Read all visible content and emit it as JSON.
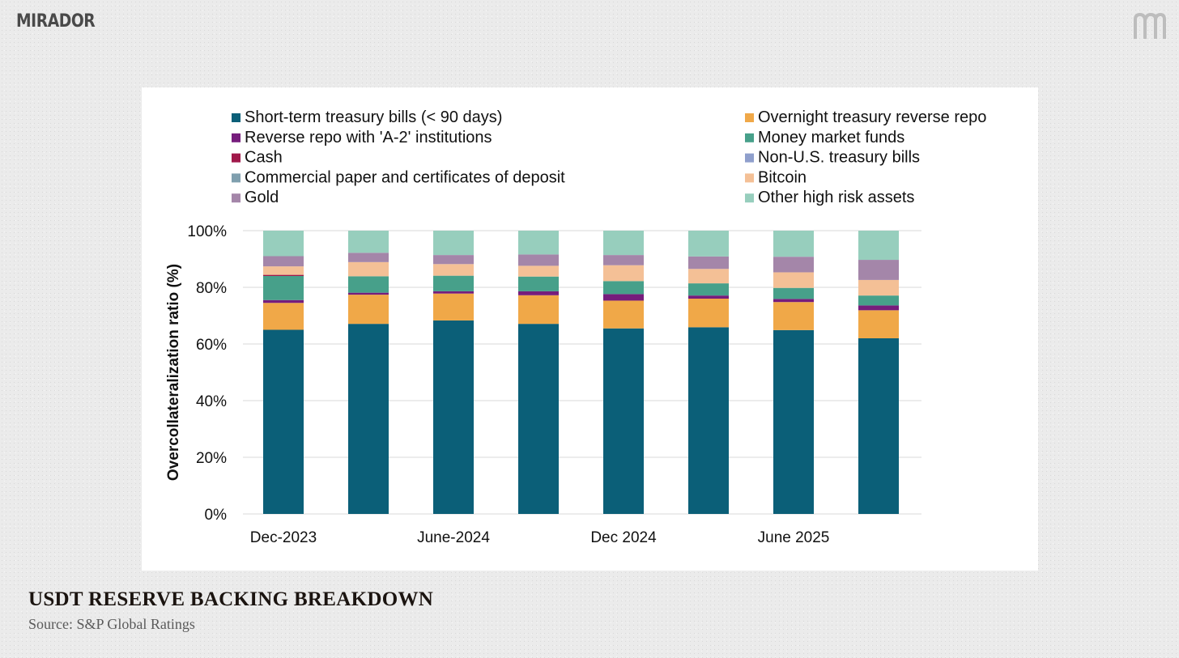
{
  "brand": {
    "name": "MIRADOR",
    "logo_mark": "m"
  },
  "title": "USDT RESERVE BACKING BREAKDOWN",
  "source": "Source: S&P Global Ratings",
  "chart_data": {
    "type": "bar",
    "stacked": true,
    "title": "",
    "xlabel": "",
    "ylabel": "Overcollateralization ratio (%)",
    "ylim": [
      0,
      100
    ],
    "yticks": [
      "0%",
      "20%",
      "40%",
      "60%",
      "80%",
      "100%"
    ],
    "ytick_values": [
      0,
      20,
      40,
      60,
      80,
      100
    ],
    "grid": true,
    "legend_position": "top",
    "categories": [
      "Dec-2023",
      "",
      "June-2024",
      "",
      "Dec 2024",
      "",
      "June 2025",
      ""
    ],
    "series": [
      {
        "name": "Short-term treasury bills (< 90 days)",
        "color": "#0b5f78",
        "values": [
          65.0,
          67.1,
          68.3,
          67.1,
          65.5,
          65.9,
          64.9,
          62.0
        ]
      },
      {
        "name": "Overnight treasury reverse repo",
        "color": "#f0a848",
        "values": [
          9.5,
          10.3,
          9.5,
          10.1,
          9.8,
          10.1,
          9.9,
          9.9
        ]
      },
      {
        "name": "Reverse repo with 'A-2' institutions",
        "color": "#761d7c",
        "values": [
          1.0,
          0.7,
          0.8,
          1.4,
          2.3,
          1.1,
          1.1,
          1.7
        ]
      },
      {
        "name": "Money market funds",
        "color": "#47a08a",
        "values": [
          8.5,
          5.8,
          5.5,
          5.2,
          4.6,
          4.3,
          3.9,
          3.5
        ]
      },
      {
        "name": "Cash",
        "color": "#a0184a",
        "values": [
          0.4,
          0,
          0,
          0,
          0,
          0,
          0,
          0
        ]
      },
      {
        "name": "Non-U.S. treasury bills",
        "color": "#8f9fcc",
        "values": [
          0,
          0,
          0,
          0,
          0,
          0,
          0,
          0
        ]
      },
      {
        "name": "Commercial paper and certificates of deposit",
        "color": "#7f9fae",
        "values": [
          0,
          0,
          0,
          0,
          0,
          0,
          0,
          0
        ]
      },
      {
        "name": "Bitcoin",
        "color": "#f4c096",
        "values": [
          3.0,
          5.0,
          4.1,
          3.8,
          5.6,
          5.1,
          5.5,
          5.5
        ]
      },
      {
        "name": "Gold",
        "color": "#a486a9",
        "values": [
          3.6,
          3.3,
          3.2,
          4.0,
          3.6,
          4.4,
          5.5,
          7.1
        ]
      },
      {
        "name": "Other high risk assets",
        "color": "#97cebd",
        "values": [
          9.0,
          7.8,
          8.6,
          8.4,
          8.6,
          9.1,
          9.2,
          10.3
        ]
      }
    ]
  }
}
